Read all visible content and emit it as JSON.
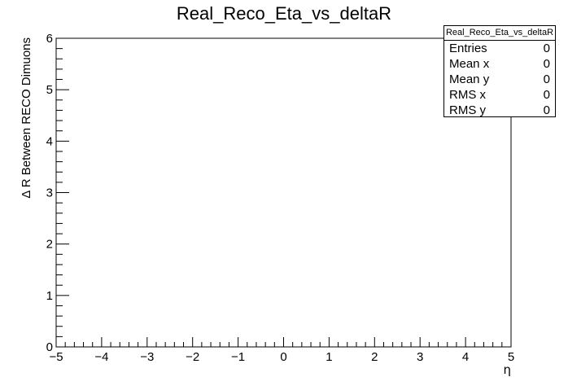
{
  "chart_data": {
    "type": "scatter",
    "title": "Real_Reco_Eta_vs_deltaR",
    "xlabel": "η",
    "ylabel": "Δ R Between RECO Dimuons",
    "xlim": [
      -5,
      5
    ],
    "ylim": [
      0,
      6
    ],
    "x_ticks": [
      -5,
      -4,
      -3,
      -2,
      -1,
      0,
      1,
      2,
      3,
      4,
      5
    ],
    "x_tick_labels": [
      "−5",
      "−4",
      "−3",
      "−2",
      "−1",
      "0",
      "1",
      "2",
      "3",
      "4",
      "5"
    ],
    "y_ticks": [
      0,
      1,
      2,
      3,
      4,
      5,
      6
    ],
    "y_tick_labels": [
      "0",
      "1",
      "2",
      "3",
      "4",
      "5",
      "6"
    ],
    "points": [],
    "grid": false,
    "legend": "none"
  },
  "stats_box": {
    "title": "Real_Reco_Eta_vs_deltaR",
    "rows": [
      {
        "label": "Entries",
        "value": "0"
      },
      {
        "label": "Mean x",
        "value": "0"
      },
      {
        "label": "Mean y",
        "value": "0"
      },
      {
        "label": "RMS x",
        "value": "0"
      },
      {
        "label": "RMS y",
        "value": "0"
      }
    ]
  }
}
